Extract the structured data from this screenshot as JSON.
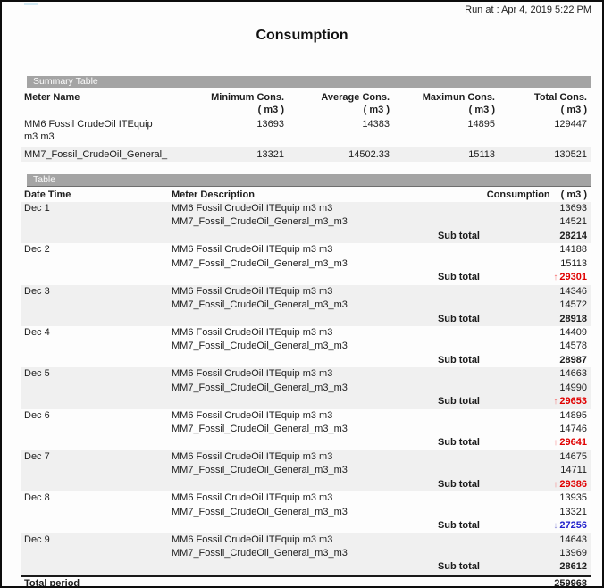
{
  "header": {
    "run_at": "Run at : Apr 4, 2019 5:22 PM",
    "title": "Consumption"
  },
  "summary_table": {
    "section_label": "Summary Table",
    "columns": {
      "meter": "Meter Name",
      "min": "Minimum Cons.",
      "avg": "Average Cons.",
      "max": "Maximun Cons.",
      "total": "Total Cons.",
      "unit": "( m3 )"
    },
    "rows": [
      {
        "meter": "MM6 Fossil CrudeOil ITEquip m3 m3",
        "min": "13693",
        "avg": "14383",
        "max": "14895",
        "total": "129447"
      },
      {
        "meter": "MM7_Fossil_CrudeOil_General_",
        "min": "13321",
        "avg": "14502.33",
        "max": "15113",
        "total": "130521"
      }
    ]
  },
  "detail_table": {
    "section_label": "Table",
    "columns": {
      "date": "Date Time",
      "meter": "Meter Description",
      "consumption": "Consumption",
      "unit": "( m3 )"
    },
    "sub_total_label": "Sub total",
    "groups": [
      {
        "date": "Dec 1",
        "rows": [
          {
            "meter": "MM6 Fossil CrudeOil ITEquip m3 m3",
            "value": "13693"
          },
          {
            "meter": "MM7_Fossil_CrudeOil_General_m3_m3",
            "value": "14521"
          }
        ],
        "sub_total": "28214",
        "trend": "flat",
        "arrow": ""
      },
      {
        "date": "Dec 2",
        "rows": [
          {
            "meter": "MM6 Fossil CrudeOil ITEquip m3 m3",
            "value": "14188"
          },
          {
            "meter": "MM7_Fossil_CrudeOil_General_m3_m3",
            "value": "15113"
          }
        ],
        "sub_total": "29301",
        "trend": "up",
        "arrow": "↑"
      },
      {
        "date": "Dec 3",
        "rows": [
          {
            "meter": "MM6 Fossil CrudeOil ITEquip m3 m3",
            "value": "14346"
          },
          {
            "meter": "MM7_Fossil_CrudeOil_General_m3_m3",
            "value": "14572"
          }
        ],
        "sub_total": "28918",
        "trend": "flat",
        "arrow": ""
      },
      {
        "date": "Dec 4",
        "rows": [
          {
            "meter": "MM6 Fossil CrudeOil ITEquip m3 m3",
            "value": "14409"
          },
          {
            "meter": "MM7_Fossil_CrudeOil_General_m3_m3",
            "value": "14578"
          }
        ],
        "sub_total": "28987",
        "trend": "flat",
        "arrow": ""
      },
      {
        "date": "Dec 5",
        "rows": [
          {
            "meter": "MM6 Fossil CrudeOil ITEquip m3 m3",
            "value": "14663"
          },
          {
            "meter": "MM7_Fossil_CrudeOil_General_m3_m3",
            "value": "14990"
          }
        ],
        "sub_total": "29653",
        "trend": "up",
        "arrow": "↑"
      },
      {
        "date": "Dec 6",
        "rows": [
          {
            "meter": "MM6 Fossil CrudeOil ITEquip m3 m3",
            "value": "14895"
          },
          {
            "meter": "MM7_Fossil_CrudeOil_General_m3_m3",
            "value": "14746"
          }
        ],
        "sub_total": "29641",
        "trend": "up",
        "arrow": "↑"
      },
      {
        "date": "Dec 7",
        "rows": [
          {
            "meter": "MM6 Fossil CrudeOil ITEquip m3 m3",
            "value": "14675"
          },
          {
            "meter": "MM7_Fossil_CrudeOil_General_m3_m3",
            "value": "14711"
          }
        ],
        "sub_total": "29386",
        "trend": "up",
        "arrow": "↑"
      },
      {
        "date": "Dec 8",
        "rows": [
          {
            "meter": "MM6 Fossil CrudeOil ITEquip m3 m3",
            "value": "13935"
          },
          {
            "meter": "MM7_Fossil_CrudeOil_General_m3_m3",
            "value": "13321"
          }
        ],
        "sub_total": "27256",
        "trend": "down",
        "arrow": "↓"
      },
      {
        "date": "Dec 9",
        "rows": [
          {
            "meter": "MM6 Fossil CrudeOil ITEquip m3 m3",
            "value": "14643"
          },
          {
            "meter": "MM7_Fossil_CrudeOil_General_m3_m3",
            "value": "13969"
          }
        ],
        "sub_total": "28612",
        "trend": "flat",
        "arrow": ""
      }
    ],
    "total": {
      "label": "Total period",
      "value": "259968"
    }
  },
  "colors": {
    "section_bar": "#a4a4a4",
    "row_stripe": "#f0f0f0",
    "increase": "#e00000",
    "decrease": "#2222cc"
  }
}
